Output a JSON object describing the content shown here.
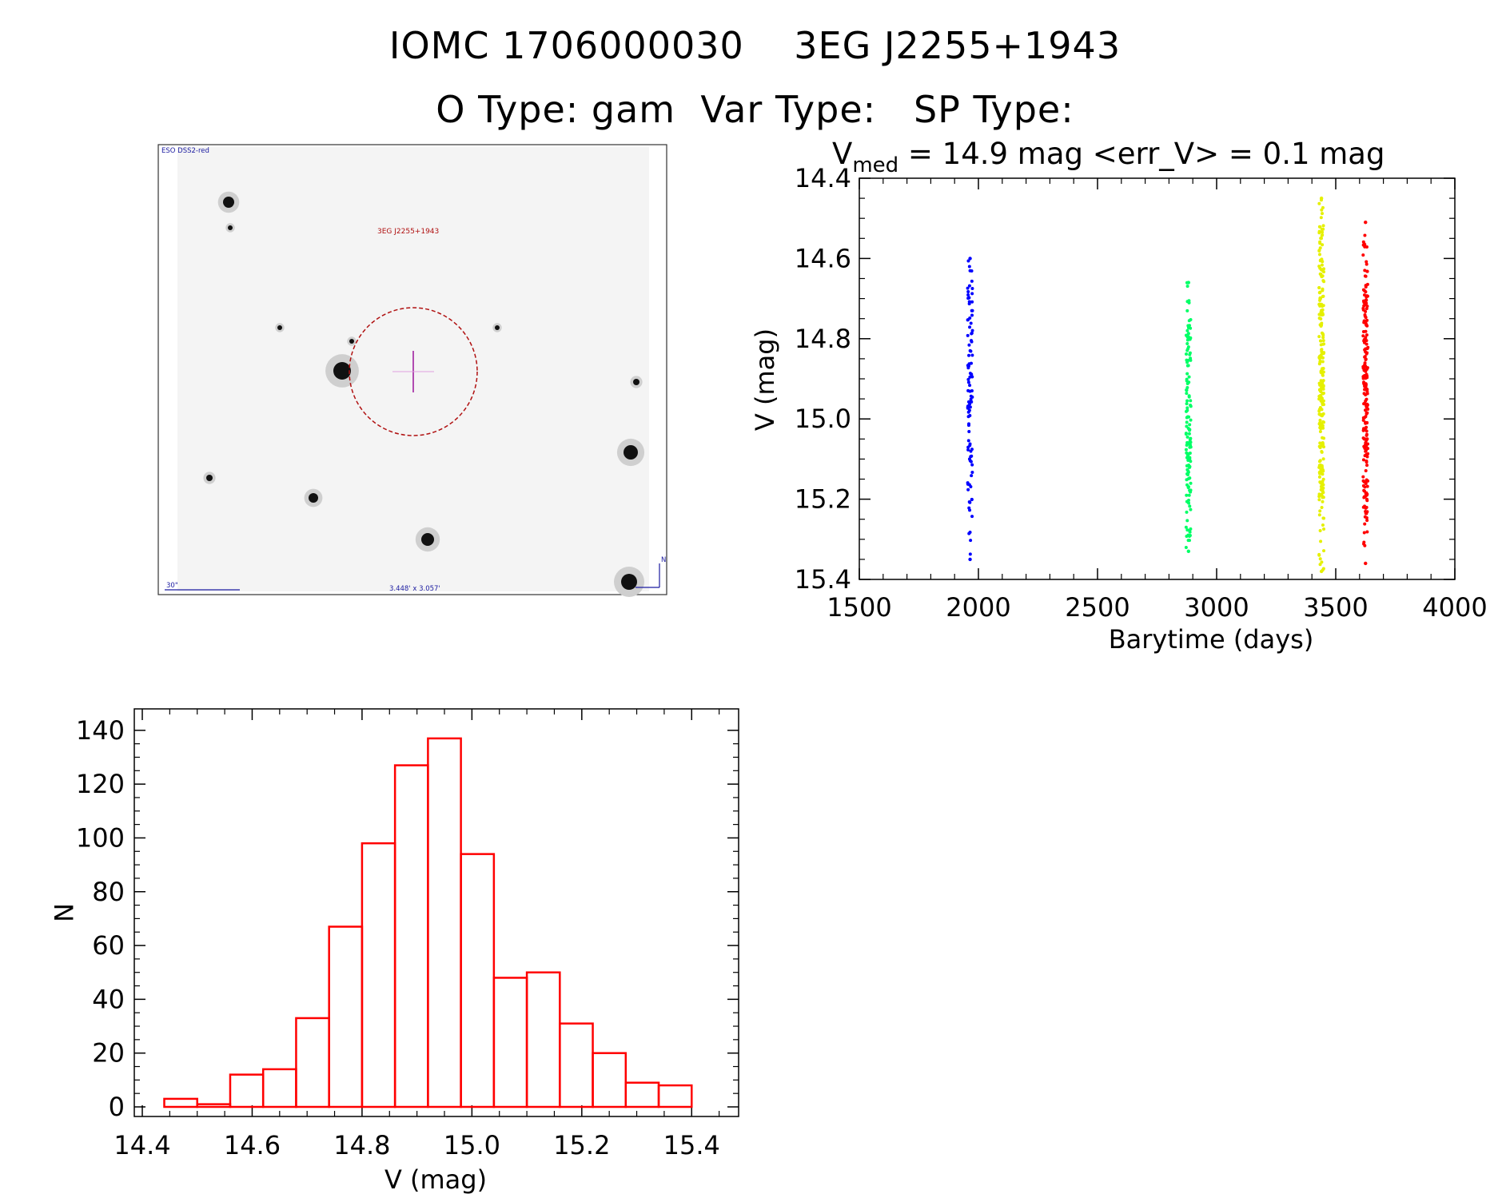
{
  "header": {
    "title": "IOMC 1706000030    3EG J2255+1943",
    "types": "O Type: gam  Var Type:   SP Type:"
  },
  "finder": {
    "survey_label": "ESO DSS2-red",
    "target_label": "3EG J2255+1943",
    "scale_label": "30\"",
    "fov_label": "3.448' x 3.057'",
    "north_label": "N"
  },
  "colors": {
    "axis": "#000000",
    "histogram": "#ff0000",
    "season1": "#0000ff",
    "season2": "#00ff66",
    "season3": "#e5f000",
    "season4": "#ff0000",
    "circle": "#b01010",
    "finder_text": "#1a1aa0"
  },
  "chart_data": [
    {
      "type": "scatter",
      "title_parts": [
        "V",
        "med",
        " = 14.9 mag <err_V> = 0.1 mag"
      ],
      "xlabel": "Barytime (days)",
      "ylabel": "V (mag)",
      "xlim": [
        1500,
        4000
      ],
      "ylim": [
        15.4,
        14.4
      ],
      "y_inverted": true,
      "xticks": [
        1500,
        2000,
        2500,
        3000,
        3500,
        4000
      ],
      "yticks": [
        14.4,
        14.6,
        14.8,
        15.0,
        15.2,
        15.4
      ],
      "grid": false,
      "series": [
        {
          "x": 1965,
          "ymin": 14.6,
          "ymax": 15.35,
          "n": 110
        },
        {
          "x": 2882,
          "ymin": 14.66,
          "ymax": 15.33,
          "n": 150
        },
        {
          "x": 3440,
          "ymin": 14.45,
          "ymax": 15.38,
          "n": 260
        },
        {
          "x": 3625,
          "ymin": 14.51,
          "ymax": 15.36,
          "n": 220
        }
      ]
    },
    {
      "type": "bar",
      "xlabel": "V (mag)",
      "ylabel": "N",
      "xlim": [
        14.4,
        15.5
      ],
      "ylim": [
        0,
        145
      ],
      "xticks": [
        14.4,
        14.6,
        14.8,
        15.0,
        15.2,
        15.4
      ],
      "yticks": [
        0,
        20,
        40,
        60,
        80,
        100,
        120,
        140
      ],
      "bin_width": 0.06,
      "bins_left": [
        14.44,
        14.5,
        14.56,
        14.62,
        14.68,
        14.74,
        14.8,
        14.86,
        14.92,
        14.98,
        15.04,
        15.1,
        15.16,
        15.22,
        15.28,
        15.34
      ],
      "counts": [
        3,
        1,
        12,
        14,
        33,
        67,
        98,
        127,
        137,
        94,
        48,
        50,
        31,
        20,
        9,
        8
      ]
    }
  ]
}
